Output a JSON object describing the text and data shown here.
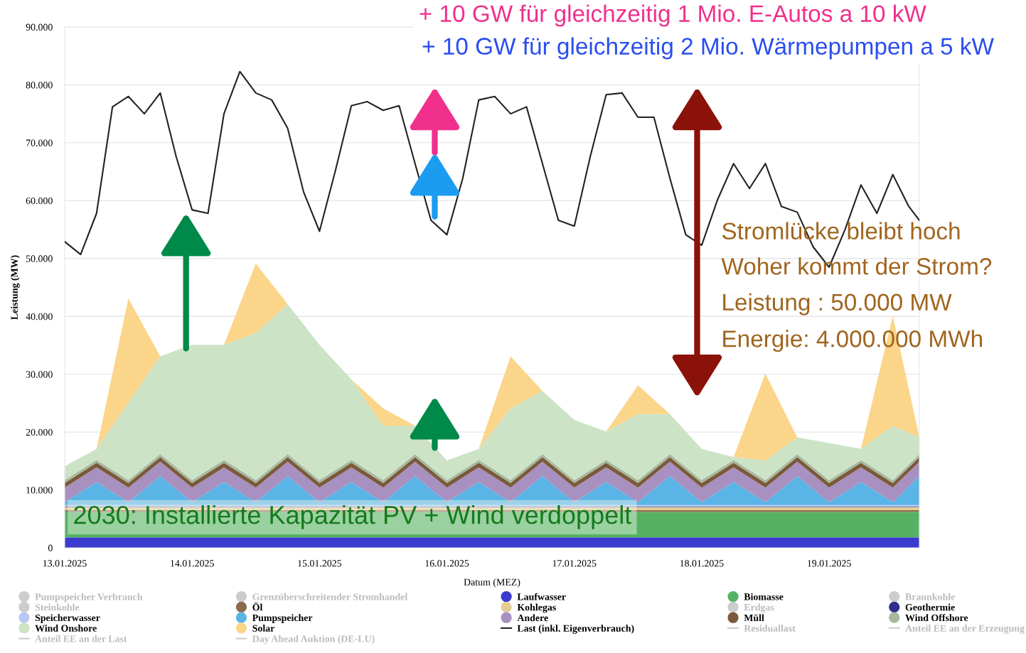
{
  "chart_data": {
    "type": "area",
    "stacked": true,
    "xlabel": "Datum (MEZ)",
    "ylabel": "Leistung (MW)",
    "x": [
      "2025-01-13T00:00",
      "2025-01-13T06:00",
      "2025-01-13T12:00",
      "2025-01-13T18:00",
      "2025-01-14T00:00",
      "2025-01-14T06:00",
      "2025-01-14T12:00",
      "2025-01-14T18:00",
      "2025-01-15T00:00",
      "2025-01-15T06:00",
      "2025-01-15T12:00",
      "2025-01-15T18:00",
      "2025-01-16T00:00",
      "2025-01-16T06:00",
      "2025-01-16T12:00",
      "2025-01-16T18:00",
      "2025-01-17T00:00",
      "2025-01-17T06:00",
      "2025-01-17T12:00",
      "2025-01-17T18:00",
      "2025-01-18T00:00",
      "2025-01-18T06:00",
      "2025-01-18T12:00",
      "2025-01-18T18:00",
      "2025-01-19T00:00",
      "2025-01-19T06:00",
      "2025-01-19T12:00",
      "2025-01-19T17:00"
    ],
    "xlim": [
      "2025-01-13T00:00",
      "2025-01-19T17:00"
    ],
    "xticks": [
      {
        "value": "2025-01-13",
        "label": "13.01.2025"
      },
      {
        "value": "2025-01-14",
        "label": "14.01.2025"
      },
      {
        "value": "2025-01-15",
        "label": "15.01.2025"
      },
      {
        "value": "2025-01-16",
        "label": "16.01.2025"
      },
      {
        "value": "2025-01-17",
        "label": "17.01.2025"
      },
      {
        "value": "2025-01-18",
        "label": "18.01.2025"
      },
      {
        "value": "2025-01-19",
        "label": "19.01.2025"
      }
    ],
    "ylim": [
      0,
      90000
    ],
    "yticks": [
      0,
      {
        "value": 10000,
        "label": "10.000"
      },
      {
        "value": 20000,
        "label": "20.000"
      },
      {
        "value": 30000,
        "label": "30.000"
      },
      {
        "value": 40000,
        "label": "40.000"
      },
      {
        "value": 50000,
        "label": "50.000"
      },
      {
        "value": 60000,
        "label": "60.000"
      },
      {
        "value": 70000,
        "label": "70.000"
      },
      {
        "value": 80000,
        "label": "80.000"
      },
      {
        "value": 90000,
        "label": "90.000"
      }
    ],
    "grid": "y",
    "legend": "bottom",
    "series": [
      {
        "name": "Pumpspeicher Verbrauch",
        "color": "#cccccc",
        "values": [
          null,
          null,
          null,
          null,
          null,
          null,
          null,
          null,
          null,
          null,
          null,
          null,
          null,
          null,
          null,
          null,
          null,
          null,
          null,
          null,
          null,
          null,
          null,
          null,
          null,
          null,
          null,
          null
        ]
      },
      {
        "name": "Grenzüberschreitender Stromhandel",
        "color": "#cccccc",
        "values": [
          null,
          null,
          null,
          null,
          null,
          null,
          null,
          null,
          null,
          null,
          null,
          null,
          null,
          null,
          null,
          null,
          null,
          null,
          null,
          null,
          null,
          null,
          null,
          null,
          null,
          null,
          null,
          null
        ]
      },
      {
        "name": "Laufwasser",
        "color": "#3b3bd0",
        "values": [
          1800,
          1800,
          1800,
          1800,
          1800,
          1800,
          1800,
          1800,
          1800,
          1800,
          1800,
          1800,
          1800,
          1800,
          1800,
          1800,
          1800,
          1800,
          1800,
          1800,
          1800,
          1800,
          1800,
          1800,
          1800,
          1800,
          1800,
          1800
        ]
      },
      {
        "name": "Biomasse",
        "color": "#56b262",
        "values": [
          4400,
          4400,
          4400,
          4400,
          4400,
          4400,
          4400,
          4400,
          4400,
          4400,
          4400,
          4400,
          4400,
          4400,
          4400,
          4400,
          4400,
          4400,
          4400,
          4400,
          4400,
          4400,
          4400,
          4400,
          4400,
          4400,
          4400,
          4400
        ]
      },
      {
        "name": "Braunkohle",
        "color": "#cccccc",
        "values": [
          null,
          null,
          null,
          null,
          null,
          null,
          null,
          null,
          null,
          null,
          null,
          null,
          null,
          null,
          null,
          null,
          null,
          null,
          null,
          null,
          null,
          null,
          null,
          null,
          null,
          null,
          null,
          null
        ]
      },
      {
        "name": "Steinkohle",
        "color": "#cccccc",
        "values": [
          null,
          null,
          null,
          null,
          null,
          null,
          null,
          null,
          null,
          null,
          null,
          null,
          null,
          null,
          null,
          null,
          null,
          null,
          null,
          null,
          null,
          null,
          null,
          null,
          null,
          null,
          null,
          null
        ]
      },
      {
        "name": "Öl",
        "color": "#8b6b4c",
        "values": [
          300,
          300,
          300,
          300,
          300,
          300,
          300,
          300,
          300,
          300,
          300,
          300,
          300,
          300,
          300,
          300,
          300,
          300,
          300,
          300,
          300,
          300,
          300,
          300,
          300,
          300,
          300,
          300
        ]
      },
      {
        "name": "Kohlegas",
        "color": "#e3cd94",
        "values": [
          500,
          500,
          500,
          500,
          500,
          500,
          500,
          500,
          500,
          500,
          500,
          500,
          500,
          500,
          500,
          500,
          500,
          500,
          500,
          500,
          500,
          500,
          500,
          500,
          500,
          500,
          500,
          500
        ]
      },
      {
        "name": "Erdgas",
        "color": "#cccccc",
        "values": [
          null,
          null,
          null,
          null,
          null,
          null,
          null,
          null,
          null,
          null,
          null,
          null,
          null,
          null,
          null,
          null,
          null,
          null,
          null,
          null,
          null,
          null,
          null,
          null,
          null,
          null,
          null,
          null
        ]
      },
      {
        "name": "Geothermie",
        "color": "#2f2f8f",
        "values": [
          100,
          100,
          100,
          100,
          100,
          100,
          100,
          100,
          100,
          100,
          100,
          100,
          100,
          100,
          100,
          100,
          100,
          100,
          100,
          100,
          100,
          100,
          100,
          100,
          100,
          100,
          100,
          100
        ]
      },
      {
        "name": "Speicherwasser",
        "color": "#b8c8f4",
        "values": [
          300,
          300,
          300,
          300,
          300,
          300,
          300,
          300,
          300,
          300,
          300,
          300,
          300,
          300,
          300,
          300,
          300,
          300,
          300,
          300,
          300,
          300,
          300,
          300,
          300,
          300,
          300,
          300
        ]
      },
      {
        "name": "Pumpspeicher",
        "color": "#5ab4e6",
        "values": [
          500,
          4000,
          500,
          5000,
          500,
          4000,
          500,
          5000,
          500,
          4000,
          500,
          5000,
          500,
          4000,
          500,
          5000,
          500,
          4000,
          500,
          5000,
          500,
          4000,
          500,
          5000,
          500,
          4000,
          500,
          5000
        ]
      },
      {
        "name": "Andere",
        "color": "#a890c0",
        "values": [
          2500,
          2500,
          2500,
          2500,
          2500,
          2500,
          2500,
          2500,
          2500,
          2500,
          2500,
          2500,
          2500,
          2500,
          2500,
          2500,
          2500,
          2500,
          2500,
          2500,
          2500,
          2500,
          2500,
          2500,
          2500,
          2500,
          2500,
          2500
        ]
      },
      {
        "name": "Müll",
        "color": "#7a5a3a",
        "values": [
          800,
          800,
          800,
          800,
          800,
          800,
          800,
          800,
          800,
          800,
          800,
          800,
          800,
          800,
          800,
          800,
          800,
          800,
          800,
          800,
          800,
          800,
          800,
          800,
          800,
          800,
          800,
          800
        ]
      },
      {
        "name": "Wind Offshore",
        "color": "#a6b89e",
        "values": [
          500,
          500,
          500,
          500,
          500,
          500,
          500,
          500,
          500,
          500,
          500,
          500,
          500,
          500,
          500,
          500,
          500,
          500,
          500,
          500,
          500,
          500,
          500,
          500,
          500,
          500,
          500,
          500
        ]
      },
      {
        "name": "Wind Onshore",
        "color": "#cde3c6",
        "values": [
          2400,
          1900,
          13400,
          16900,
          23400,
          19900,
          25400,
          25900,
          23400,
          13900,
          9400,
          4900,
          3400,
          1900,
          12400,
          10900,
          10400,
          4900,
          11400,
          6900,
          5400,
          500,
          3400,
          2900,
          6400,
          1900,
          9400,
          2900
        ]
      },
      {
        "name": "Solar",
        "color": "#fbd58a",
        "values": [
          0,
          0,
          18000,
          0,
          0,
          0,
          12000,
          0,
          0,
          0,
          3000,
          0,
          0,
          0,
          9000,
          0,
          0,
          0,
          5000,
          0,
          0,
          0,
          15000,
          0,
          0,
          0,
          19000,
          0
        ]
      },
      {
        "name": "Last (inkl. Eigenverbrauch)",
        "type": "line",
        "color": "#222222",
        "x": [
          "2025-01-13T00:00",
          "2025-01-13T03:00",
          "2025-01-13T06:00",
          "2025-01-13T09:00",
          "2025-01-13T12:00",
          "2025-01-13T15:00",
          "2025-01-13T18:00",
          "2025-01-13T21:00",
          "2025-01-14T00:00",
          "2025-01-14T03:00",
          "2025-01-14T06:00",
          "2025-01-14T09:00",
          "2025-01-14T12:00",
          "2025-01-14T15:00",
          "2025-01-14T18:00",
          "2025-01-14T21:00",
          "2025-01-15T00:00",
          "2025-01-15T03:00",
          "2025-01-15T06:00",
          "2025-01-15T09:00",
          "2025-01-15T12:00",
          "2025-01-15T15:00",
          "2025-01-15T18:00",
          "2025-01-15T21:00",
          "2025-01-16T00:00",
          "2025-01-16T03:00",
          "2025-01-16T06:00",
          "2025-01-16T09:00",
          "2025-01-16T12:00",
          "2025-01-16T15:00",
          "2025-01-16T18:00",
          "2025-01-16T21:00",
          "2025-01-17T00:00",
          "2025-01-17T03:00",
          "2025-01-17T06:00",
          "2025-01-17T09:00",
          "2025-01-17T12:00",
          "2025-01-17T15:00",
          "2025-01-17T18:00",
          "2025-01-17T21:00",
          "2025-01-18T00:00",
          "2025-01-18T03:00",
          "2025-01-18T06:00",
          "2025-01-18T09:00",
          "2025-01-18T12:00",
          "2025-01-18T15:00",
          "2025-01-18T18:00",
          "2025-01-18T21:00",
          "2025-01-19T00:00",
          "2025-01-19T03:00",
          "2025-01-19T06:00",
          "2025-01-19T09:00",
          "2025-01-19T12:00",
          "2025-01-19T15:00",
          "2025-01-19T17:00"
        ],
        "values": [
          52900,
          50700,
          57800,
          76200,
          78000,
          75000,
          78600,
          67600,
          58400,
          57800,
          75000,
          82300,
          78600,
          77400,
          72500,
          61500,
          54700,
          65200,
          76400,
          77100,
          75600,
          76400,
          66400,
          56600,
          54100,
          63900,
          77400,
          78000,
          75000,
          76200,
          66400,
          56600,
          55600,
          67600,
          78300,
          78600,
          74400,
          74400,
          63900,
          54100,
          52300,
          60200,
          66400,
          62100,
          66400,
          59000,
          58000,
          52000,
          48500,
          55000,
          62700,
          57800,
          64500,
          59000,
          56600
        ]
      },
      {
        "name": "Residuallast",
        "type": "line",
        "color": "#cccccc",
        "values": [
          null,
          null,
          null,
          null,
          null,
          null,
          null,
          null,
          null,
          null,
          null,
          null,
          null,
          null,
          null,
          null,
          null,
          null,
          null,
          null,
          null,
          null,
          null,
          null,
          null,
          null,
          null,
          null
        ]
      },
      {
        "name": "Anteil EE an der Erzeugung",
        "type": "line",
        "color": "#cccccc",
        "values": [
          null,
          null,
          null,
          null,
          null,
          null,
          null,
          null,
          null,
          null,
          null,
          null,
          null,
          null,
          null,
          null,
          null,
          null,
          null,
          null,
          null,
          null,
          null,
          null,
          null,
          null,
          null,
          null
        ]
      },
      {
        "name": "Anteil EE an der Last",
        "type": "line",
        "color": "#cccccc",
        "values": [
          null,
          null,
          null,
          null,
          null,
          null,
          null,
          null,
          null,
          null,
          null,
          null,
          null,
          null,
          null,
          null,
          null,
          null,
          null,
          null,
          null,
          null,
          null,
          null,
          null,
          null,
          null,
          null
        ]
      },
      {
        "name": "Day Ahead Auktion (DE-LU)",
        "type": "line",
        "color": "#cccccc",
        "values": [
          null,
          null,
          null,
          null,
          null,
          null,
          null,
          null,
          null,
          null,
          null,
          null,
          null,
          null,
          null,
          null,
          null,
          null,
          null,
          null,
          null,
          null,
          null,
          null,
          null,
          null,
          null,
          null
        ]
      }
    ],
    "annotations": [
      "+ 10 GW für gleichzeitig 1 Mio. E-Autos a 10 kW",
      "+ 10 GW für gleichzeitig 2 Mio. Wärmepumpen a 5 kW",
      "Stromlücke bleibt hoch",
      "Woher kommt der Strom?",
      "Leistung : 50.000 MW",
      "Energie: 4.000.000 MWh",
      "2030: Installierte Kapazität PV + Wind verdoppelt"
    ]
  }
}
